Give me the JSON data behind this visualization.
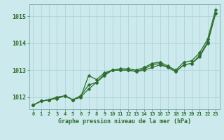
{
  "x": [
    0,
    1,
    2,
    3,
    4,
    5,
    6,
    7,
    8,
    9,
    10,
    11,
    12,
    13,
    14,
    15,
    16,
    17,
    18,
    19,
    20,
    21,
    22,
    23
  ],
  "line1_high": [
    1011.7,
    1011.85,
    1011.9,
    1011.95,
    1012.05,
    1011.9,
    1012.0,
    1012.8,
    1012.65,
    1012.9,
    1013.0,
    1013.05,
    1013.05,
    1013.0,
    1013.1,
    1013.25,
    1013.3,
    1013.15,
    1013.0,
    1013.3,
    1013.35,
    1013.65,
    1014.15,
    1015.25
  ],
  "line2_mid": [
    1011.7,
    1011.85,
    1011.9,
    1012.0,
    1012.05,
    1011.9,
    1012.05,
    1012.45,
    1012.55,
    1012.8,
    1013.0,
    1013.0,
    1013.0,
    1012.95,
    1013.05,
    1013.2,
    1013.25,
    1013.1,
    1012.95,
    1013.2,
    1013.25,
    1013.55,
    1014.05,
    1015.1
  ],
  "line3_low": [
    1011.7,
    1011.85,
    1011.9,
    1011.95,
    1012.05,
    1011.9,
    1012.0,
    1012.3,
    1012.55,
    1012.85,
    1013.0,
    1013.0,
    1013.0,
    1012.95,
    1013.0,
    1013.1,
    1013.2,
    1013.1,
    1012.95,
    1013.2,
    1013.25,
    1013.5,
    1014.0,
    1015.1
  ],
  "bg_color": "#cce9ed",
  "grid_color": "#aacfd5",
  "line_color": "#2d6e2d",
  "ylim": [
    1011.55,
    1015.45
  ],
  "yticks": [
    1012,
    1013,
    1014,
    1015
  ],
  "xlabel": "Graphe pression niveau de la mer (hPa)",
  "marker": "D",
  "marker_size": 2.5,
  "linewidth": 0.9
}
